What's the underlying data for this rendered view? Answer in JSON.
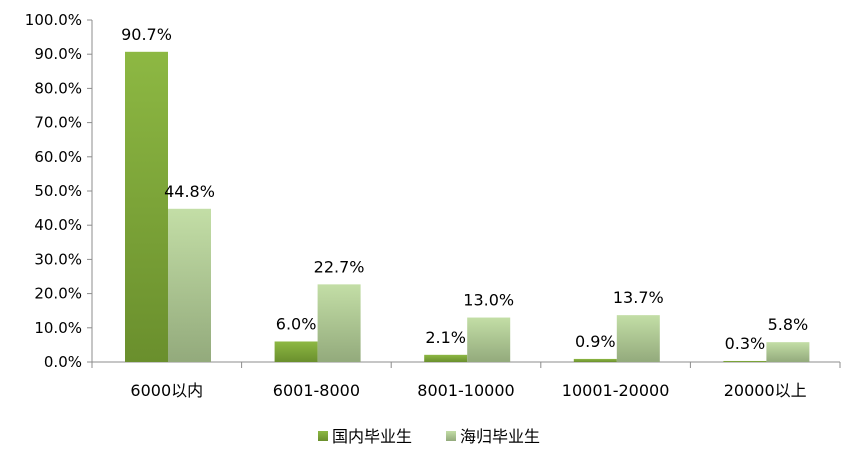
{
  "chart_data": {
    "type": "bar",
    "title": "",
    "xlabel": "",
    "ylabel": "",
    "categories": [
      "6000以内",
      "6001-8000",
      "8001-10000",
      "10001-20000",
      "20000以上"
    ],
    "series": [
      {
        "name": "国内毕业生",
        "values": [
          90.7,
          6.0,
          2.1,
          0.9,
          0.3
        ],
        "labels": [
          "90.7%",
          "6.0%",
          "2.1%",
          "0.9%",
          "0.3%"
        ],
        "color": "#6f9a2f"
      },
      {
        "name": "海归毕业生",
        "values": [
          44.8,
          22.7,
          13.0,
          13.7,
          5.8
        ],
        "labels": [
          "44.8%",
          "22.7%",
          "13.0%",
          "13.7%",
          "5.8%"
        ],
        "color": "#a9c98a"
      }
    ],
    "ylim": [
      0,
      100
    ],
    "yticks": [
      "0.0%",
      "10.0%",
      "20.0%",
      "30.0%",
      "40.0%",
      "50.0%",
      "60.0%",
      "70.0%",
      "80.0%",
      "90.0%",
      "100.0%"
    ],
    "grid": false,
    "legend": "bottom-center"
  }
}
